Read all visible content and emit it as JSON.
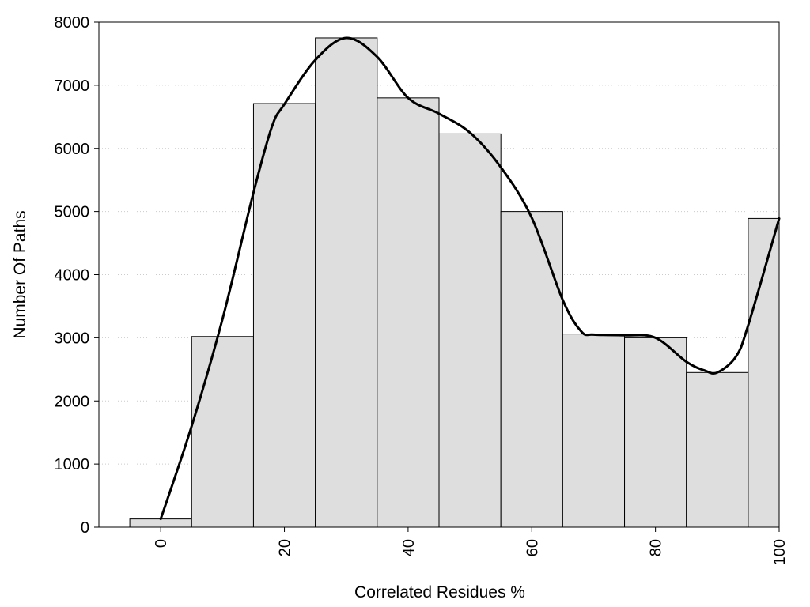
{
  "chart_data": {
    "type": "bar",
    "xlabel": "Correlated Residues %",
    "ylabel": "Number Of Paths",
    "x": [
      0,
      10,
      20,
      30,
      40,
      50,
      60,
      70,
      80,
      90,
      100
    ],
    "values": [
      130,
      3020,
      6710,
      7750,
      6800,
      6230,
      5000,
      3060,
      3000,
      2450,
      4890
    ],
    "bin_width": 10,
    "xlim": [
      -10,
      100
    ],
    "ylim": [
      0,
      8000
    ],
    "x_ticks": [
      {
        "value": 0,
        "label": "0"
      },
      {
        "value": 20,
        "label": "20"
      },
      {
        "value": 40,
        "label": "40"
      },
      {
        "value": 60,
        "label": "60"
      },
      {
        "value": 80,
        "label": "80"
      },
      {
        "value": 100,
        "label": "100"
      }
    ],
    "y_ticks": [
      {
        "value": 0,
        "label": "0"
      },
      {
        "value": 1000,
        "label": "1000"
      },
      {
        "value": 2000,
        "label": "2000"
      },
      {
        "value": 3000,
        "label": "3000"
      },
      {
        "value": 4000,
        "label": "4000"
      },
      {
        "value": 5000,
        "label": "5000"
      },
      {
        "value": 6000,
        "label": "6000"
      },
      {
        "value": 7000,
        "label": "7000"
      },
      {
        "value": 8000,
        "label": "8000"
      }
    ],
    "smooth_curve": {
      "x": [
        0,
        5,
        10,
        15,
        18,
        20,
        25,
        30,
        35,
        40,
        45,
        50,
        55,
        60,
        65,
        68,
        70,
        75,
        80,
        85,
        88,
        90,
        93,
        95,
        100
      ],
      "y": [
        130,
        1600,
        3300,
        5300,
        6350,
        6700,
        7400,
        7750,
        7450,
        6800,
        6550,
        6250,
        5700,
        4900,
        3600,
        3100,
        3050,
        3040,
        3000,
        2620,
        2480,
        2450,
        2700,
        3200,
        4890
      ]
    },
    "grid": {
      "horizontal": true,
      "style": "dotted"
    },
    "colors": {
      "bar_fill": "#dedede",
      "bar_stroke": "#000000",
      "curve": "#000000",
      "grid": "#cccccc"
    }
  }
}
